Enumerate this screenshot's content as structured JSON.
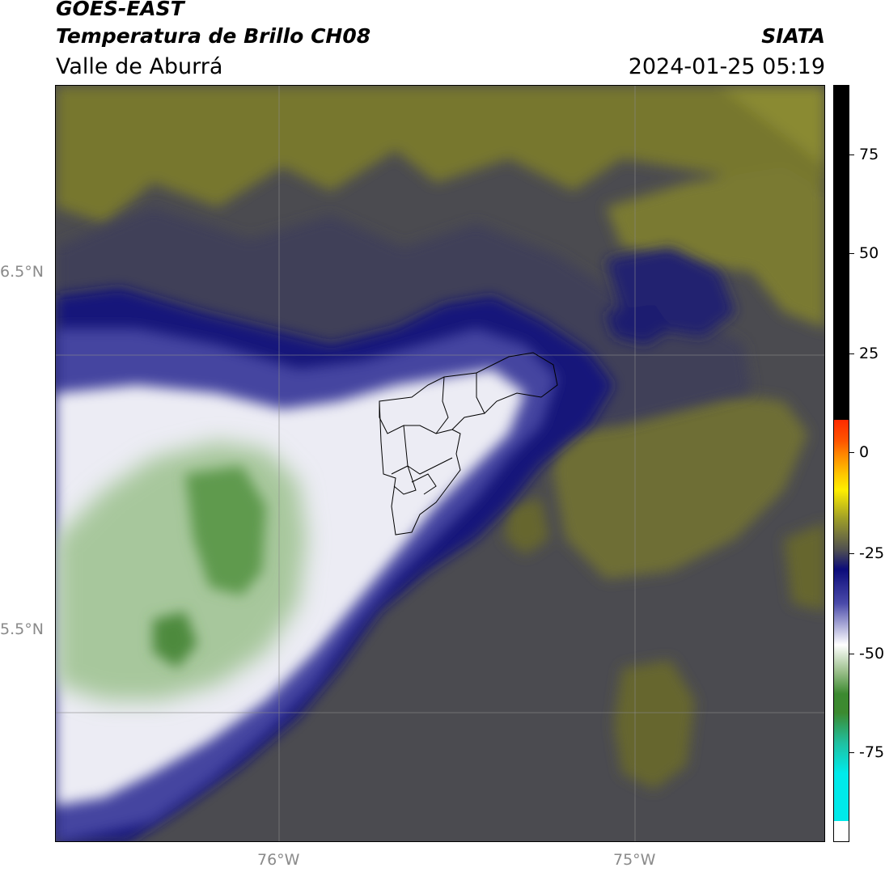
{
  "header": {
    "title_line1": "GOES-EAST",
    "title_line2": "Temperatura de Brillo CH08",
    "region": "Valle de Aburrá",
    "brand": "SIATA",
    "timestamp": "2024-01-25 05:19"
  },
  "map": {
    "lat_labels": [
      "6.5°N",
      "5.5°N"
    ],
    "lon_labels": [
      "76°W",
      "75°W"
    ],
    "gridline_color": "#8a8a8a",
    "boundary_color": "#000000"
  },
  "colorbar": {
    "tick_labels": [
      "75",
      "50",
      "25",
      "0",
      "-25",
      "-50",
      "-75"
    ],
    "colors": {
      "black": "#000000",
      "red": "#ff2a00",
      "orange": "#ff8c00",
      "yellow": "#ffee00",
      "olive": "#9a9a2a",
      "gray": "#4e4e52",
      "navy": "#0c0c7a",
      "blue": "#4a4aaa",
      "white": "#ffffff",
      "green": "#3c8a30",
      "teal": "#20c0a0",
      "cyan": "#00eaea"
    }
  }
}
